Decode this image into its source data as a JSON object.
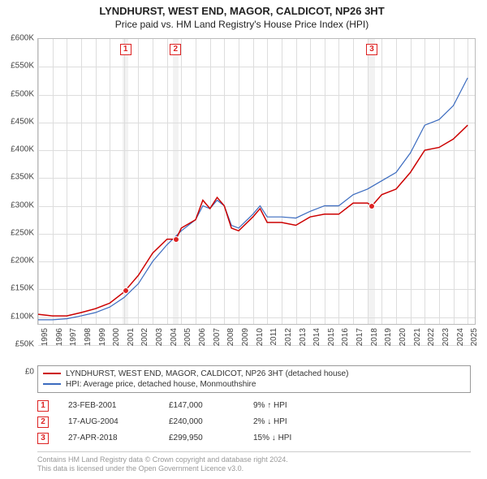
{
  "titles": {
    "address": "LYNDHURST, WEST END, MAGOR, CALDICOT, NP26 3HT",
    "subtitle": "Price paid vs. HM Land Registry's House Price Index (HPI)"
  },
  "chart": {
    "type": "line",
    "ylim": [
      0,
      600000
    ],
    "ytick_step": 50000,
    "ytick_labels": [
      "£0",
      "£50K",
      "£100K",
      "£150K",
      "£200K",
      "£250K",
      "£300K",
      "£350K",
      "£400K",
      "£450K",
      "£500K",
      "£550K",
      "£600K"
    ],
    "xlim": [
      1995,
      2025.5
    ],
    "xticks": [
      1995,
      1996,
      1997,
      1998,
      1999,
      2000,
      2001,
      2002,
      2003,
      2004,
      2005,
      2006,
      2007,
      2008,
      2009,
      2010,
      2011,
      2012,
      2013,
      2014,
      2015,
      2016,
      2017,
      2018,
      2019,
      2020,
      2021,
      2022,
      2023,
      2024,
      2025
    ],
    "background_color": "#ffffff",
    "grid_color": "#dddddd",
    "vband_color": "#f2f2f2",
    "vbands": [
      {
        "from": 2000.9,
        "to": 2001.3,
        "label": "1"
      },
      {
        "from": 2004.4,
        "to": 2004.8,
        "label": "2"
      },
      {
        "from": 2018.1,
        "to": 2018.5,
        "label": "3"
      }
    ],
    "series": [
      {
        "name": "price_paid",
        "label": "LYNDHURST, WEST END, MAGOR, CALDICOT, NP26 3HT (detached house)",
        "color": "#cc0000",
        "width": 1.5,
        "points": [
          [
            1995.0,
            105000
          ],
          [
            1996.0,
            102000
          ],
          [
            1997.0,
            102000
          ],
          [
            1998.0,
            108000
          ],
          [
            1999.0,
            115000
          ],
          [
            2000.0,
            125000
          ],
          [
            2001.0,
            145000
          ],
          [
            2002.0,
            175000
          ],
          [
            2003.0,
            215000
          ],
          [
            2004.0,
            240000
          ],
          [
            2004.63,
            240000
          ],
          [
            2005.0,
            260000
          ],
          [
            2006.0,
            275000
          ],
          [
            2006.5,
            310000
          ],
          [
            2007.0,
            295000
          ],
          [
            2007.5,
            315000
          ],
          [
            2008.0,
            300000
          ],
          [
            2008.5,
            260000
          ],
          [
            2009.0,
            255000
          ],
          [
            2010.0,
            280000
          ],
          [
            2010.5,
            295000
          ],
          [
            2011.0,
            270000
          ],
          [
            2012.0,
            270000
          ],
          [
            2013.0,
            265000
          ],
          [
            2014.0,
            280000
          ],
          [
            2015.0,
            285000
          ],
          [
            2016.0,
            285000
          ],
          [
            2017.0,
            305000
          ],
          [
            2018.0,
            305000
          ],
          [
            2018.32,
            299950
          ],
          [
            2019.0,
            320000
          ],
          [
            2020.0,
            330000
          ],
          [
            2021.0,
            360000
          ],
          [
            2022.0,
            400000
          ],
          [
            2023.0,
            405000
          ],
          [
            2024.0,
            420000
          ],
          [
            2025.0,
            445000
          ]
        ]
      },
      {
        "name": "hpi",
        "label": "HPI: Average price, detached house, Monmouthshire",
        "color": "#3b6bbf",
        "width": 1.2,
        "points": [
          [
            1995.0,
            95000
          ],
          [
            1996.0,
            95000
          ],
          [
            1997.0,
            97000
          ],
          [
            1998.0,
            102000
          ],
          [
            1999.0,
            108000
          ],
          [
            2000.0,
            118000
          ],
          [
            2001.0,
            135000
          ],
          [
            2002.0,
            160000
          ],
          [
            2003.0,
            200000
          ],
          [
            2004.0,
            230000
          ],
          [
            2005.0,
            255000
          ],
          [
            2006.0,
            275000
          ],
          [
            2006.5,
            300000
          ],
          [
            2007.0,
            295000
          ],
          [
            2007.5,
            310000
          ],
          [
            2008.0,
            300000
          ],
          [
            2008.5,
            265000
          ],
          [
            2009.0,
            260000
          ],
          [
            2010.0,
            285000
          ],
          [
            2010.5,
            300000
          ],
          [
            2011.0,
            280000
          ],
          [
            2012.0,
            280000
          ],
          [
            2013.0,
            278000
          ],
          [
            2014.0,
            290000
          ],
          [
            2015.0,
            300000
          ],
          [
            2016.0,
            300000
          ],
          [
            2017.0,
            320000
          ],
          [
            2018.0,
            330000
          ],
          [
            2019.0,
            345000
          ],
          [
            2020.0,
            360000
          ],
          [
            2021.0,
            395000
          ],
          [
            2022.0,
            445000
          ],
          [
            2023.0,
            455000
          ],
          [
            2024.0,
            480000
          ],
          [
            2025.0,
            530000
          ]
        ]
      }
    ],
    "markers": [
      {
        "idx": "1",
        "x": 2001.15,
        "y": 147000
      },
      {
        "idx": "2",
        "x": 2004.63,
        "y": 240000
      },
      {
        "idx": "3",
        "x": 2018.32,
        "y": 299950
      }
    ]
  },
  "legend": {
    "items": [
      {
        "color": "#cc0000",
        "label_ref": "chart.series.0.label"
      },
      {
        "color": "#3b6bbf",
        "label_ref": "chart.series.1.label"
      }
    ]
  },
  "transactions": [
    {
      "idx": "1",
      "date": "23-FEB-2001",
      "price": "£147,000",
      "diff": "9% ↑ HPI"
    },
    {
      "idx": "2",
      "date": "17-AUG-2004",
      "price": "£240,000",
      "diff": "2% ↓ HPI"
    },
    {
      "idx": "3",
      "date": "27-APR-2018",
      "price": "£299,950",
      "diff": "15% ↓ HPI"
    }
  ],
  "footnote": {
    "line1": "Contains HM Land Registry data © Crown copyright and database right 2024.",
    "line2": "This data is licensed under the Open Government Licence v3.0."
  }
}
